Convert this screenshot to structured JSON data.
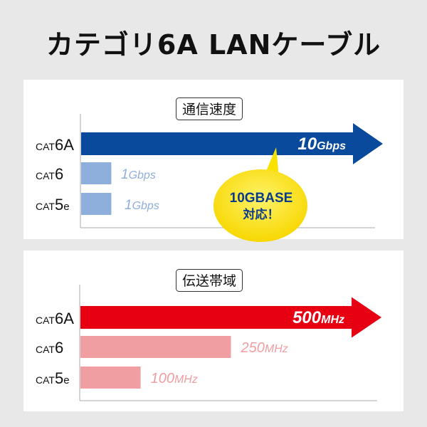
{
  "title": "カテゴリ6A LANケーブル",
  "chart_data": [
    {
      "type": "bar",
      "orientation": "horizontal",
      "title": "通信速度",
      "categories": [
        "CAT6A",
        "CAT6",
        "CAT5e"
      ],
      "category_labels": [
        {
          "prefix": "CAT",
          "suffix": "6A"
        },
        {
          "prefix": "CAT",
          "suffix": "6"
        },
        {
          "prefix": "CAT",
          "suffix": "5e"
        }
      ],
      "values": [
        10,
        1,
        1
      ],
      "unit": "Gbps",
      "data_labels": [
        {
          "num": "10",
          "unit": "Gbps"
        },
        {
          "num": "1",
          "unit": "Gbps"
        },
        {
          "num": "1",
          "unit": "Gbps"
        }
      ],
      "colors": {
        "highlight": "#0a4a9c",
        "other": "#8eaedb",
        "label_other": "#8eaedb"
      },
      "callout": {
        "line1": "10GBASE",
        "line2": "対応！",
        "fill": "#f7d700",
        "text_color": "#0a3a8a"
      }
    },
    {
      "type": "bar",
      "orientation": "horizontal",
      "title": "伝送帯域",
      "categories": [
        "CAT6A",
        "CAT6",
        "CAT5e"
      ],
      "category_labels": [
        {
          "prefix": "CAT",
          "suffix": "6A"
        },
        {
          "prefix": "CAT",
          "suffix": "6"
        },
        {
          "prefix": "CAT",
          "suffix": "5e"
        }
      ],
      "values": [
        500,
        250,
        100
      ],
      "unit": "MHz",
      "data_labels": [
        {
          "num": "500",
          "unit": "MHz"
        },
        {
          "num": "250",
          "unit": "MHz"
        },
        {
          "num": "100",
          "unit": "MHz"
        }
      ],
      "colors": {
        "highlight": "#e60012",
        "other": "#f09ea2",
        "label_other": "#f09ea2"
      }
    }
  ]
}
